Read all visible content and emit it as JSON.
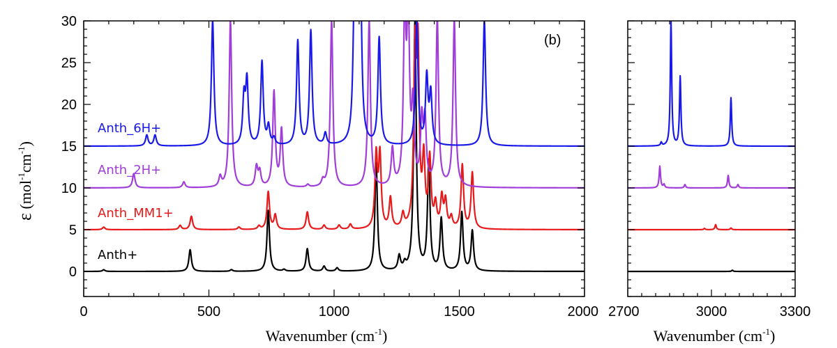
{
  "chart_data": [
    {
      "type": "line",
      "panel_tag": "(b)",
      "xlabel_main": "Wavenumber (cm",
      "xlabel_sup": "-1",
      "xlabel_tail": ")",
      "ylabel": "ε (mol-1cm-1)",
      "ylabel_symbol": "ε",
      "ylabel_mid": " (mol",
      "ylabel_sup1": "-1",
      "ylabel_mid2": "cm",
      "ylabel_sup2": "-1",
      "ylabel_tail": ")",
      "xlim": [
        0,
        2000
      ],
      "ylim": [
        -3,
        30
      ],
      "xticks": [
        0,
        500,
        1000,
        1500,
        2000
      ],
      "yticks": [
        0,
        5,
        10,
        15,
        20,
        25,
        30
      ],
      "series": [
        {
          "name": "Anth+",
          "color": "#000000",
          "offset": 0,
          "peaks": [
            [
              80,
              0.2
            ],
            [
              425,
              2.6
            ],
            [
              590,
              0.2
            ],
            [
              737,
              7.3
            ],
            [
              800,
              0.2
            ],
            [
              893,
              2.7
            ],
            [
              960,
              0.6
            ],
            [
              1012,
              0.4
            ],
            [
              1168,
              13
            ],
            [
              1260,
              1.7
            ],
            [
              1282,
              0.7
            ],
            [
              1323,
              30
            ],
            [
              1378,
              13
            ],
            [
              1428,
              6.2
            ],
            [
              1510,
              7
            ],
            [
              1552,
              4.8
            ]
          ]
        },
        {
          "name": "Anth_MM1+",
          "color": "#e8191a",
          "offset": 5,
          "peaks": [
            [
              80,
              0.3
            ],
            [
              385,
              0.5
            ],
            [
              430,
              1.6
            ],
            [
              620,
              0.3
            ],
            [
              700,
              0.4
            ],
            [
              737,
              4.5
            ],
            [
              765,
              1.7
            ],
            [
              893,
              2.1
            ],
            [
              960,
              0.5
            ],
            [
              1020,
              0.5
            ],
            [
              1065,
              0.6
            ],
            [
              1168,
              8.6
            ],
            [
              1183,
              8.6
            ],
            [
              1225,
              3.6
            ],
            [
              1275,
              1.6
            ],
            [
              1323,
              20
            ],
            [
              1335,
              20
            ],
            [
              1358,
              7.8
            ],
            [
              1382,
              8.1
            ],
            [
              1405,
              2.7
            ],
            [
              1430,
              3.6
            ],
            [
              1445,
              3.2
            ],
            [
              1468,
              1.3
            ],
            [
              1512,
              7.6
            ],
            [
              1552,
              6.7
            ]
          ]
        },
        {
          "name": "Anth_2H+",
          "color": "#a13dd8",
          "offset": 10,
          "peaks": [
            [
              200,
              1.7
            ],
            [
              400,
              0.7
            ],
            [
              545,
              1.2
            ],
            [
              586,
              20
            ],
            [
              690,
              2.4
            ],
            [
              703,
              1.8
            ],
            [
              760,
              11.4
            ],
            [
              790,
              6.8
            ],
            [
              895,
              0.3
            ],
            [
              955,
              0.7
            ],
            [
              990,
              20
            ],
            [
              1140,
              20
            ],
            [
              1233,
              4.4
            ],
            [
              1282,
              20
            ],
            [
              1296,
              20
            ],
            [
              1315,
              9
            ],
            [
              1350,
              7.5
            ],
            [
              1363,
              7.4
            ],
            [
              1412,
              20
            ],
            [
              1480,
              20
            ]
          ]
        },
        {
          "name": "Anth_6H+",
          "color": "#1a1ae8",
          "offset": 15,
          "peaks": [
            [
              252,
              1.3
            ],
            [
              285,
              1.3
            ],
            [
              515,
              15
            ],
            [
              640,
              5.5
            ],
            [
              652,
              7.5
            ],
            [
              712,
              10
            ],
            [
              738,
              2.2
            ],
            [
              760,
              0.8
            ],
            [
              855,
              12.5
            ],
            [
              907,
              13.7
            ],
            [
              965,
              1.4
            ],
            [
              1080,
              12
            ],
            [
              1090,
              15
            ],
            [
              1098,
              15
            ],
            [
              1105,
              15
            ],
            [
              1180,
              12.8
            ],
            [
              1330,
              15
            ],
            [
              1370,
              8
            ],
            [
              1386,
              6
            ],
            [
              1600,
              15
            ]
          ]
        }
      ]
    },
    {
      "type": "line",
      "xlabel_main": "Wavenumber (cm",
      "xlabel_sup": "-1",
      "xlabel_tail": ")",
      "xlim": [
        2700,
        3300
      ],
      "ylim": [
        -3,
        30
      ],
      "xticks": [
        2700,
        3000,
        3300
      ],
      "xtick_labels": [
        "2700",
        "3000",
        "3300"
      ],
      "series": [
        {
          "name": "Anth+",
          "color": "#000000",
          "offset": 0,
          "peaks": [
            [
              3075,
              0.15
            ]
          ]
        },
        {
          "name": "Anth_MM1+",
          "color": "#e8191a",
          "offset": 5,
          "peaks": [
            [
              2975,
              0.15
            ],
            [
              3015,
              0.6
            ],
            [
              3070,
              0.2
            ]
          ]
        },
        {
          "name": "Anth_2H+",
          "color": "#a13dd8",
          "offset": 10,
          "peaks": [
            [
              2815,
              2.6
            ],
            [
              2830,
              0.4
            ],
            [
              2905,
              0.4
            ],
            [
              3060,
              1.5
            ],
            [
              3095,
              0.4
            ]
          ]
        },
        {
          "name": "Anth_6H+",
          "color": "#1a1ae8",
          "offset": 15,
          "peaks": [
            [
              2820,
              0.4
            ],
            [
              2855,
              15
            ],
            [
              2888,
              8.3
            ],
            [
              3070,
              5.8
            ]
          ]
        }
      ]
    }
  ]
}
